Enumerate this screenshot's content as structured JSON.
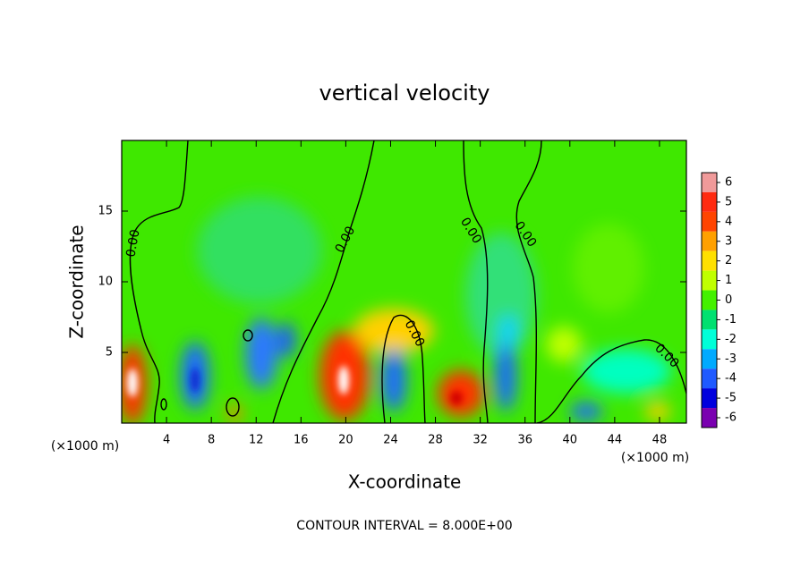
{
  "chart_data": {
    "type": "contour",
    "title": "vertical velocity",
    "x_label": "X-coordinate",
    "y_label": "Z-coordinate",
    "x_unit_label": "(×1000 m)",
    "xlim": [
      0,
      50.4
    ],
    "xticks": [
      4,
      8,
      12,
      16,
      20,
      24,
      28,
      32,
      36,
      40,
      44,
      48
    ],
    "ylim": [
      0,
      20
    ],
    "yticks": [
      5,
      10,
      15
    ],
    "contour_label": "0.00",
    "contour_interval_label": "CONTOUR INTERVAL = 8.000E+00",
    "colorbar": {
      "ticks": [
        6,
        5,
        4,
        3,
        2,
        1,
        0,
        -1,
        -2,
        -3,
        -4,
        -5,
        -6
      ],
      "colors": [
        "#f09a9a",
        "#ff2a10",
        "#ff4400",
        "#ffa000",
        "#ffe000",
        "#c0ff00",
        "#44f000",
        "#00e070",
        "#00ffd8",
        "#00aaff",
        "#1f5aff",
        "#0000dd"
      ]
    }
  }
}
